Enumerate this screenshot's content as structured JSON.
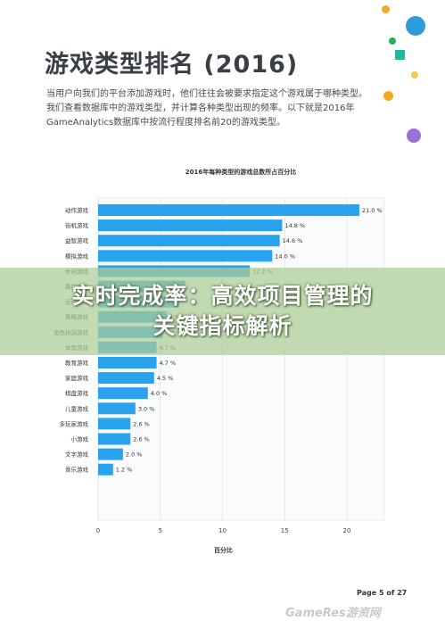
{
  "page": {
    "title": "游戏类型排名 (2016)",
    "intro_lines": [
      "当用户向我们的平台添加游戏时，他们往往会被要求指定这个游戏属于哪种类型。",
      "我们查看数据库中的游戏类型，并计算各种类型出现的频率。以下就是2016年",
      "GameAnalytics数据库中按流行程度排名前20的游戏类型。"
    ],
    "page_number": "Page 5 of 27",
    "watermark": "GameRes游资网"
  },
  "banner": {
    "line1": "实时完成率：高效项目管理的",
    "line2": "关键指标解析"
  },
  "colors": {
    "bar": "#2aa3ef",
    "dot_orange": "#f5a623",
    "dot_blue": "#2d9cdb",
    "dot_green": "#27ae60",
    "dot_teal": "#1abc9c",
    "dot_purple": "#9b6fd6",
    "dot_yellow": "#f2c94c"
  },
  "chart_data": {
    "type": "bar",
    "orientation": "horizontal",
    "title": "2016年每种类型的游戏总数所占百分比",
    "xlabel": "百分比",
    "ylabel": "",
    "xlim": [
      0,
      23
    ],
    "xticks": [
      0,
      5,
      10,
      15,
      20
    ],
    "grid": true,
    "categories": [
      "动作游戏",
      "街机游戏",
      "益智游戏",
      "模拟游戏",
      "休闲游戏",
      "赛车游戏",
      "运动游戏",
      "策略游戏",
      "角色扮演游戏",
      "体育游戏",
      "教育游戏",
      "家庭游戏",
      "棋盘游戏",
      "儿童游戏",
      "多玩家游戏",
      "小游戏",
      "文字游戏",
      "音乐游戏"
    ],
    "values": [
      21.0,
      14.8,
      14.6,
      14.0,
      12.2,
      7.0,
      6.5,
      5.5,
      5.2,
      4.7,
      4.7,
      4.5,
      4.0,
      3.0,
      2.6,
      2.6,
      2.0,
      1.2
    ],
    "value_labels": [
      "21.0 %",
      "14.8 %",
      "14.6 %",
      "14.0 %",
      "12.2 %",
      "",
      "",
      "5.5 %",
      "5.2 %",
      "4.7 %",
      "4.7 %",
      "4.5 %",
      "4.0 %",
      "3.0 %",
      "2.6 %",
      "2.6 %",
      "2.0 %",
      "1.2 %"
    ]
  }
}
